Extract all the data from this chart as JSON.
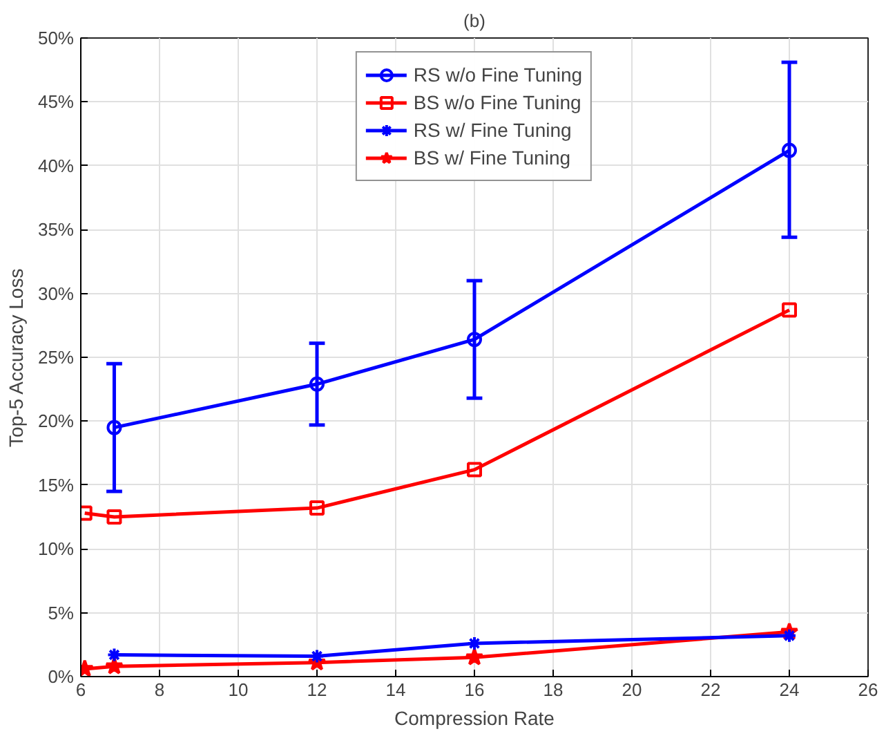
{
  "chart_data": {
    "type": "line",
    "title": "(b)",
    "xlabel": "Compression Rate",
    "ylabel": "Top-5 Accuracy Loss",
    "xlim": [
      6,
      26
    ],
    "xticks": [
      6,
      8,
      10,
      12,
      14,
      16,
      18,
      20,
      22,
      24,
      26
    ],
    "ylim": [
      0,
      50
    ],
    "yticks": [
      {
        "value": 0,
        "label": "0%"
      },
      {
        "value": 5,
        "label": "5%"
      },
      {
        "value": 10,
        "label": "10%"
      },
      {
        "value": 15,
        "label": "15%"
      },
      {
        "value": 20,
        "label": "20%"
      },
      {
        "value": 25,
        "label": "25%"
      },
      {
        "value": 30,
        "label": "30%"
      },
      {
        "value": 35,
        "label": "35%"
      },
      {
        "value": 40,
        "label": "40%"
      },
      {
        "value": 45,
        "label": "45%"
      },
      {
        "value": 50,
        "label": "50%"
      }
    ],
    "grid": true,
    "legend": "top",
    "line_style": "solid",
    "series": [
      {
        "name": "RS w/o Fine Tuning",
        "color": "#0000ff",
        "marker": "circle",
        "x": [
          6.85,
          12,
          16,
          24
        ],
        "values": [
          19.5,
          22.9,
          26.4,
          41.2
        ],
        "errors": [
          [
            14.5,
            24.5
          ],
          [
            19.7,
            26.1
          ],
          [
            21.8,
            31.0
          ],
          [
            34.4,
            48.1
          ]
        ]
      },
      {
        "name": "BS w/o Fine Tuning",
        "color": "#ff0000",
        "marker": "square",
        "x": [
          6.1,
          6.85,
          12,
          16,
          24
        ],
        "values": [
          12.8,
          12.5,
          13.2,
          16.2,
          28.7
        ]
      },
      {
        "name": "RS w/ Fine Tuning",
        "color": "#0000ff",
        "marker": "cross",
        "x": [
          6.85,
          12,
          16,
          24
        ],
        "values": [
          1.7,
          1.6,
          2.6,
          3.2
        ]
      },
      {
        "name": "BS w/ Fine Tuning",
        "color": "#ff0000",
        "marker": "star",
        "x": [
          6.1,
          6.85,
          12,
          16,
          24
        ],
        "values": [
          0.6,
          0.8,
          1.1,
          1.5,
          3.5
        ]
      }
    ]
  }
}
